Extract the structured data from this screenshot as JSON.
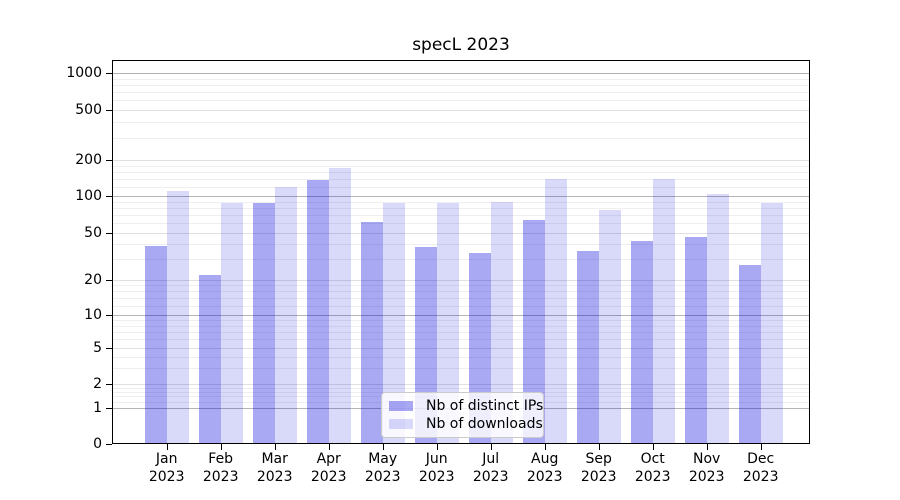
{
  "title": "specL 2023",
  "chart_data": {
    "type": "bar",
    "title": "specL 2023",
    "categories": [
      "Jan 2023",
      "Feb 2023",
      "Mar 2023",
      "Apr 2023",
      "May 2023",
      "Jun 2023",
      "Jul 2023",
      "Aug 2023",
      "Sep 2023",
      "Oct 2023",
      "Nov 2023",
      "Dec 2023"
    ],
    "series": [
      {
        "name": "Nb of distinct IPs",
        "color": "rgba(0,0,221,0.34)",
        "values": [
          39,
          22,
          87,
          136,
          62,
          38,
          34,
          64,
          35,
          43,
          46,
          27
        ]
      },
      {
        "name": "Nb of downloads",
        "color": "rgba(0,0,221,0.15)",
        "values": [
          110,
          87,
          119,
          170,
          88,
          88,
          90,
          140,
          77,
          140,
          105,
          88
        ]
      }
    ],
    "xlabel": "",
    "ylabel": "",
    "yscale": "symlog",
    "yticks": [
      0,
      1,
      2,
      5,
      10,
      20,
      50,
      100,
      200,
      500,
      1000
    ],
    "ylim": [
      0,
      1500
    ],
    "grid": true,
    "legend_position": "lower center"
  },
  "colors": {
    "bar_dark": "rgba(0,0,221,0.34)",
    "bar_light": "rgba(0,0,221,0.15)",
    "grid_major": "#b4b4b4",
    "grid_mid": "#e0e0e0",
    "grid_minor": "#efefef",
    "spine": "#000000",
    "background": "#ffffff"
  }
}
